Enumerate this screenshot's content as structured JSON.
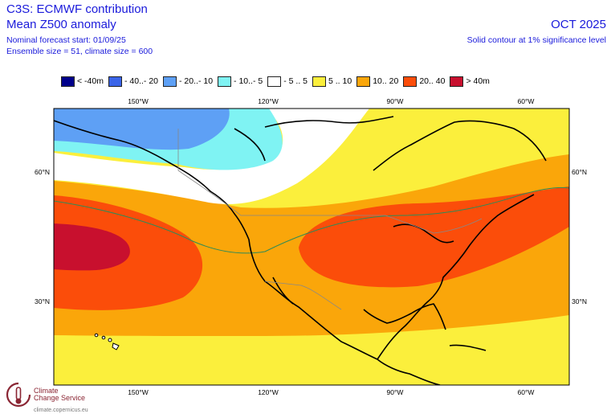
{
  "header": {
    "line1": "C3S: ECMWF contribution",
    "line2": "Mean Z500 anomaly",
    "line3": "Nominal forecast start: 01/09/25",
    "line4": "Ensemble size = 51, climate size = 600",
    "month": "OCT 2025",
    "note": "Solid contour at 1% significance level"
  },
  "legend": [
    {
      "label": "< -40m",
      "color": "#00008b"
    },
    {
      "label": "- 40..- 20",
      "color": "#3a64e8"
    },
    {
      "label": "- 20..- 10",
      "color": "#5ea0f5"
    },
    {
      "label": "- 10..- 5",
      "color": "#7ff3f3"
    },
    {
      "label": "- 5 .. 5",
      "color": "#ffffff"
    },
    {
      "label": "5 .. 10",
      "color": "#fbef3c"
    },
    {
      "label": "10.. 20",
      "color": "#faa60a"
    },
    {
      "label": "20.. 40",
      "color": "#fb4d0a"
    },
    {
      "label": "> 40m",
      "color": "#c8102e"
    }
  ],
  "axes": {
    "lon_top": [
      "150°W",
      "120°W",
      "90°W",
      "60°W"
    ],
    "lon_bottom": [
      "150°W",
      "120°W",
      "90°W",
      "60°W"
    ],
    "lat_left": [
      "60°N",
      "30°N"
    ],
    "lat_right": [
      "60°N",
      "30°N"
    ]
  },
  "logo": {
    "name_line1": "Climate",
    "name_line2": "Change Service",
    "url": "climate.copernicus.eu",
    "icon": "thermometer-logo-icon"
  }
}
